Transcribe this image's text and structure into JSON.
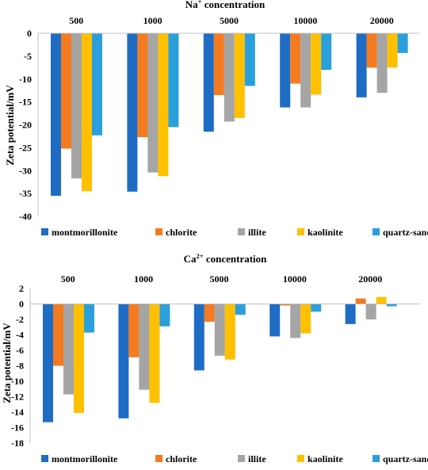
{
  "colors": {
    "montmorillonite": "#1f6cc4",
    "chlorite": "#f47b20",
    "illite": "#a5a5a5",
    "kaolinite": "#ffc000",
    "quartz-sand": "#2a9fdc",
    "axis": "#c0c0c0"
  },
  "chart_data": [
    {
      "type": "bar",
      "title_main": "Na",
      "title_sup": "+",
      "title_rest": " concentration",
      "categories": [
        "500",
        "1000",
        "5000",
        "10000",
        "20000"
      ],
      "ylabel": "Zeta potential/mV",
      "ylim": [
        -40,
        0
      ],
      "yticks": [
        0,
        -5,
        -10,
        -15,
        -20,
        -25,
        -30,
        -35,
        -40
      ],
      "series": [
        {
          "name": "montmorillonite",
          "values": [
            -35.5,
            -34.6,
            -21.5,
            -16.2,
            -14.0
          ]
        },
        {
          "name": "chlorite",
          "values": [
            -25.2,
            -22.7,
            -13.5,
            -11.0,
            -7.5
          ]
        },
        {
          "name": "illite",
          "values": [
            -31.7,
            -30.4,
            -19.3,
            -16.2,
            -13.0
          ]
        },
        {
          "name": "kaolinite",
          "values": [
            -34.5,
            -31.2,
            -18.5,
            -13.4,
            -7.5
          ]
        },
        {
          "name": "quartz-sand",
          "values": [
            -22.3,
            -20.5,
            -11.5,
            -8.0,
            -4.3
          ]
        }
      ],
      "grid": false,
      "legend": "bottom"
    },
    {
      "type": "bar",
      "title_main": "Ca",
      "title_sup": "2+",
      "title_rest": " concentration",
      "categories": [
        "500",
        "1000",
        "5000",
        "10000",
        "20000"
      ],
      "ylabel": "Zeta potential/mV",
      "ylim": [
        -18,
        2
      ],
      "yticks": [
        2,
        0,
        -2,
        -4,
        -6,
        -8,
        -10,
        -12,
        -14,
        -16,
        -18
      ],
      "series": [
        {
          "name": "montmorillonite",
          "values": [
            -15.3,
            -14.8,
            -8.6,
            -4.2,
            -2.6
          ]
        },
        {
          "name": "chlorite",
          "values": [
            -8.0,
            -6.9,
            -2.3,
            -0.2,
            0.7
          ]
        },
        {
          "name": "illite",
          "values": [
            -11.7,
            -11.1,
            -6.7,
            -4.4,
            -2.0
          ]
        },
        {
          "name": "kaolinite",
          "values": [
            -14.1,
            -12.8,
            -7.2,
            -3.8,
            0.9
          ]
        },
        {
          "name": "quartz-sand",
          "values": [
            -3.7,
            -2.9,
            -1.4,
            -1.0,
            -0.3
          ]
        }
      ],
      "grid": false,
      "legend": "bottom"
    }
  ]
}
